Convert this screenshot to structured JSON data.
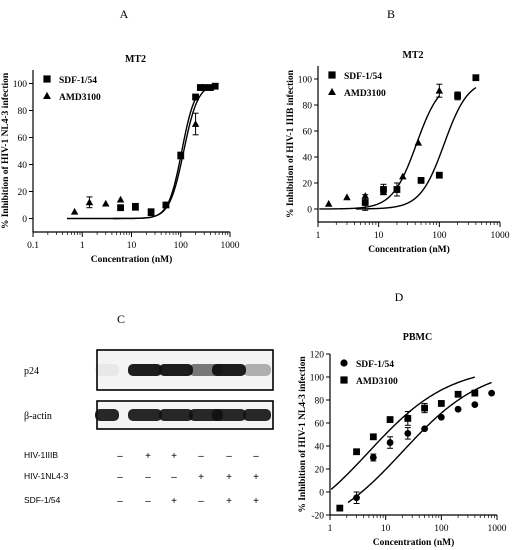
{
  "panel_letters": [
    "A",
    "B",
    "C",
    "D"
  ],
  "chart_data": [
    {
      "panel": "A",
      "type": "scatter",
      "title": "MT2",
      "xlabel": "Concentration (nM)",
      "ylabel": "% Inhibition of HIV-1 NL4-3 infection",
      "xscale": "log",
      "xlim": [
        0.1,
        1000
      ],
      "ylim": [
        -10,
        110
      ],
      "xticks": [
        0.1,
        1,
        10,
        100,
        1000
      ],
      "xtick_labels": [
        "0.1",
        "1",
        "10",
        "100",
        "1000"
      ],
      "yticks": [
        0,
        20,
        40,
        60,
        80,
        100
      ],
      "ytick_labels": [
        "0",
        "20",
        "40",
        "60",
        "80",
        "100"
      ],
      "legend_position": "top-left",
      "series": [
        {
          "name": "SDF-1/54",
          "marker": "square",
          "x": [
            6,
            12,
            25,
            50,
            100,
            200,
            250,
            300,
            400,
            500
          ],
          "y": [
            8,
            9,
            5,
            10,
            47,
            90,
            97,
            97,
            97,
            98
          ],
          "err": [
            0,
            0,
            0,
            0,
            0,
            0,
            0,
            0,
            0,
            0
          ],
          "fit": {
            "bottom": 0,
            "top": 100,
            "ec50": 115,
            "hill": 3
          }
        },
        {
          "name": "AMD3100",
          "marker": "triangle",
          "x": [
            0.7,
            1.4,
            3,
            6,
            12,
            25,
            50,
            100,
            200
          ],
          "y": [
            5,
            12,
            11,
            14,
            8,
            4,
            10,
            46,
            70
          ],
          "err": [
            0,
            4,
            0,
            0,
            0,
            0,
            0,
            0,
            8
          ],
          "fit": {
            "bottom": 0,
            "top": 100,
            "ec50": 105,
            "hill": 3.2
          }
        }
      ]
    },
    {
      "panel": "B",
      "type": "scatter",
      "title": "MT2",
      "xlabel": "Concentration (nM)",
      "ylabel": "% Inhibition of HIV-1 IIIB infection",
      "xscale": "log",
      "xlim": [
        1,
        1000
      ],
      "ylim": [
        -10,
        110
      ],
      "xticks": [
        1,
        10,
        100,
        1000
      ],
      "xtick_labels": [
        "1",
        "10",
        "100",
        "1000"
      ],
      "yticks": [
        0,
        20,
        40,
        60,
        80,
        100
      ],
      "ytick_labels": [
        "0",
        "20",
        "40",
        "60",
        "80",
        "100"
      ],
      "legend_position": "top-left",
      "series": [
        {
          "name": "SDF-1/54",
          "marker": "square",
          "x": [
            6,
            12,
            20,
            50,
            100,
            200,
            400
          ],
          "y": [
            5,
            15,
            15,
            22,
            26,
            87,
            101
          ],
          "err": [
            6,
            4,
            5,
            0,
            0,
            3,
            0
          ],
          "fit": {
            "bottom": 0,
            "top": 100,
            "ec50": 120,
            "hill": 2.2
          }
        },
        {
          "name": "AMD3100",
          "marker": "triangle",
          "x": [
            1.5,
            3,
            6,
            12,
            25,
            45,
            100
          ],
          "y": [
            4,
            9,
            10,
            13,
            25,
            51,
            91
          ],
          "err": [
            0,
            0,
            0,
            0,
            0,
            0,
            5
          ],
          "fit": {
            "bottom": 0,
            "top": 100,
            "ec50": 42,
            "hill": 2.2
          }
        }
      ]
    },
    {
      "panel": "D",
      "type": "scatter",
      "title": "PBMC",
      "xlabel": "Concentration (nM)",
      "ylabel": "% Inhibition of HIV-1 NL4-3 infection",
      "xscale": "log",
      "xlim": [
        1,
        1000
      ],
      "ylim": [
        -20,
        120
      ],
      "xticks": [
        1,
        10,
        100,
        1000
      ],
      "xtick_labels": [
        "1",
        "10",
        "100",
        "1000"
      ],
      "yticks": [
        -20,
        0,
        20,
        40,
        60,
        80,
        100,
        120
      ],
      "ytick_labels": [
        "-20",
        "0",
        "20",
        "40",
        "60",
        "80",
        "100",
        "120"
      ],
      "legend_position": "top-left",
      "series": [
        {
          "name": "SDF-1/54",
          "marker": "circle",
          "x": [
            3,
            6,
            12,
            25,
            50,
            100,
            200,
            400,
            800
          ],
          "y": [
            -5,
            30,
            43,
            51,
            55,
            65,
            72,
            76,
            86
          ],
          "err": [
            5,
            3,
            5,
            5,
            0,
            0,
            0,
            0,
            0
          ],
          "fit": {
            "bottom": -40,
            "top": 110,
            "ec50": 20,
            "hill": 0.6
          }
        },
        {
          "name": "AMD3100",
          "marker": "square",
          "x": [
            1.5,
            3,
            6,
            12,
            25,
            50,
            100,
            200,
            400
          ],
          "y": [
            -14,
            35,
            48,
            63,
            64,
            73,
            77,
            85,
            86
          ],
          "err": [
            0,
            0,
            0,
            0,
            6,
            4,
            0,
            0,
            0
          ],
          "fit": {
            "bottom": -40,
            "top": 110,
            "ec50": 5,
            "hill": 0.6
          }
        }
      ]
    }
  ],
  "western_blot": {
    "panel": "C",
    "bands": [
      {
        "label": "p24",
        "intensities": [
          0.05,
          0.95,
          0.95,
          0.55,
          0.95,
          0.3
        ]
      },
      {
        "label": "β-actin",
        "intensities": [
          0.9,
          0.9,
          0.9,
          0.9,
          0.9,
          0.9
        ]
      }
    ],
    "conditions": [
      {
        "label": "HIV-1IIIB",
        "values": [
          "–",
          "+",
          "+",
          "–",
          "–",
          "–"
        ]
      },
      {
        "label": "HIV-1NL4-3",
        "values": [
          "–",
          "–",
          "–",
          "+",
          "+",
          "+"
        ]
      },
      {
        "label": "SDF-1/54",
        "values": [
          "–",
          "–",
          "+",
          "–",
          "+",
          "+"
        ]
      }
    ]
  },
  "colors": {
    "ink": "#000000",
    "band": "#111111",
    "blot_bg": "#f4f4f4"
  }
}
